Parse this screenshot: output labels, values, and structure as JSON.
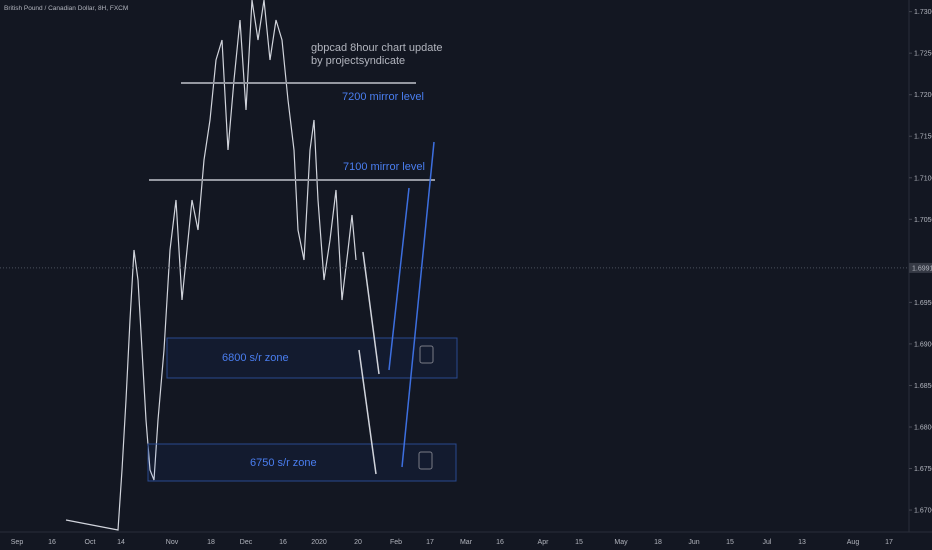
{
  "header": {
    "symbol": "British Pound / Canadian Dollar, 8H, FXCM"
  },
  "annotations": {
    "title": "gbpcad 8hour chart update",
    "author": "by projectsyndicate",
    "level_7200": "7200 mirror level",
    "level_7100": "7100 mirror level",
    "zone_6800": "6800 s/r zone",
    "zone_6750": "6750 s/r zone"
  },
  "price_axis": {
    "ylim": [
      1.6676,
      1.7314
    ],
    "ticks": [
      {
        "value": 1.73,
        "label": "1.73000"
      },
      {
        "value": 1.725,
        "label": "1.72500"
      },
      {
        "value": 1.72,
        "label": "1.72000"
      },
      {
        "value": 1.715,
        "label": "1.71500"
      },
      {
        "value": 1.71,
        "label": "1.71000"
      },
      {
        "value": 1.705,
        "label": "1.70500"
      },
      {
        "value": 1.695,
        "label": "1.69500"
      },
      {
        "value": 1.69,
        "label": "1.69000"
      },
      {
        "value": 1.685,
        "label": "1.68500"
      },
      {
        "value": 1.68,
        "label": "1.68000"
      },
      {
        "value": 1.675,
        "label": "1.67500"
      },
      {
        "value": 1.67,
        "label": "1.67000"
      }
    ],
    "last_price": {
      "value": 1.69915,
      "label": "1.69915"
    }
  },
  "time_axis": {
    "labels": [
      "Sep",
      "16",
      "Oct",
      "14",
      "Nov",
      "18",
      "Dec",
      "16",
      "2020",
      "20",
      "Feb",
      "17",
      "Mar",
      "16",
      "Apr",
      "15",
      "May",
      "18",
      "Jun",
      "15",
      "Jul",
      "13",
      "Aug",
      "17"
    ]
  }
}
